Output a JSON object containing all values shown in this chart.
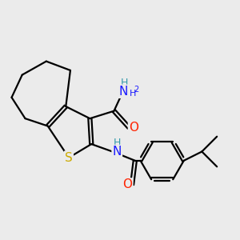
{
  "background_color": "#ebebeb",
  "atom_colors": {
    "C": "#000000",
    "N": "#3399aa",
    "N2": "#1a1aff",
    "O": "#ff2200",
    "S": "#ccaa00",
    "H": "#3399aa"
  },
  "bond_color": "#000000",
  "bond_width": 1.6,
  "dbl_off": 0.055,
  "font_size": 10
}
